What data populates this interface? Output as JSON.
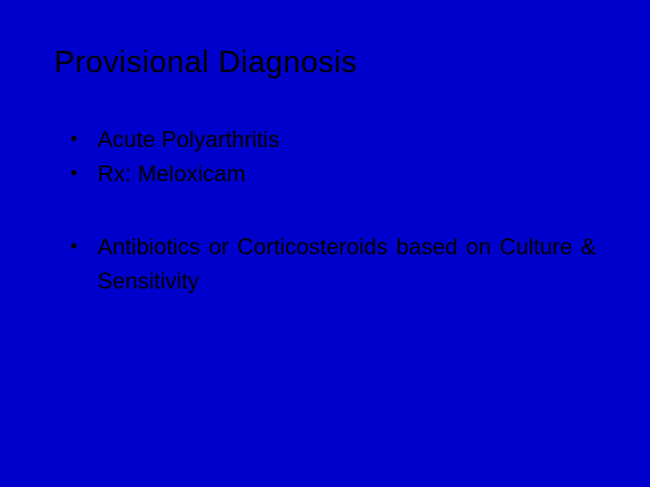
{
  "slide": {
    "title": "Provisional Diagnosis",
    "bullets": [
      "Acute Polyarthritis",
      "Rx:  Meloxicam",
      "Antibiotics or Corticosteroids based on Culture & Sensitivity"
    ],
    "background_color": "#0000cc",
    "text_color": "#000000",
    "title_fontsize": 34,
    "bullet_fontsize": 25
  }
}
